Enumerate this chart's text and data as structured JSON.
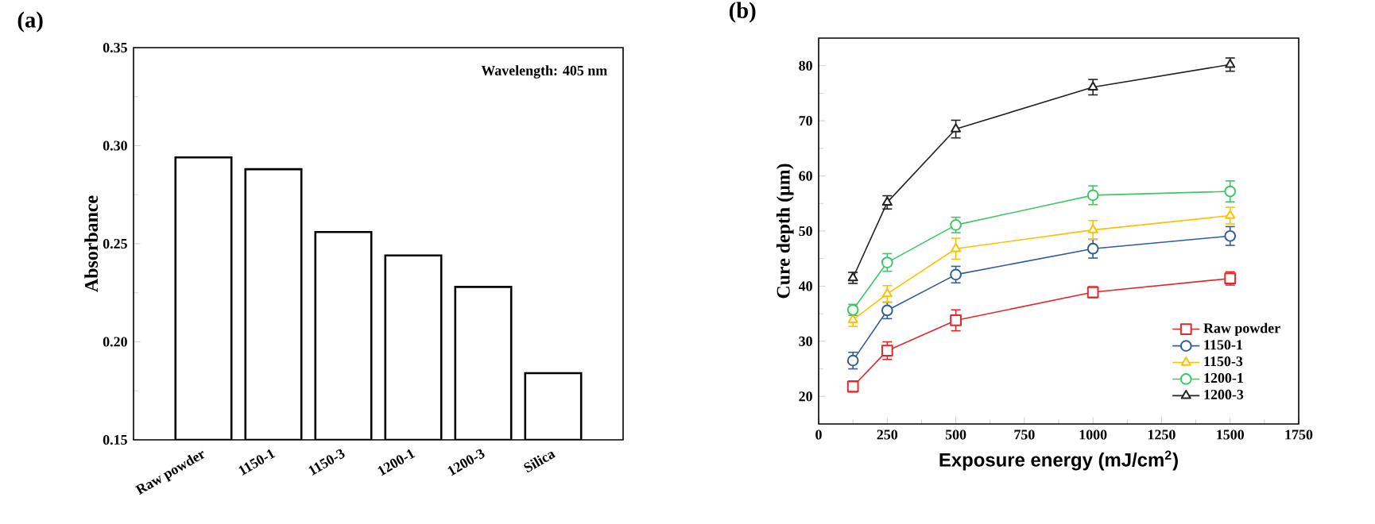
{
  "chart_data": [
    {
      "type": "bar",
      "title": "(a)",
      "ylabel": "Absorbance",
      "categories": [
        "Raw powder",
        "1150-1",
        "1150-3",
        "1200-1",
        "1200-3",
        "Silica"
      ],
      "values": [
        0.294,
        0.288,
        0.256,
        0.244,
        0.228,
        0.184
      ],
      "color": "#ffffff",
      "ylim": [
        0.15,
        0.35
      ],
      "yticks": [
        0.15,
        {
          "value": 0.2,
          "label": "0.20"
        },
        0.25,
        {
          "value": 0.3,
          "label": "0.30"
        },
        0.35
      ],
      "annotations": [
        "Wavelength: 405 nm"
      ],
      "grid": false,
      "legend": false
    },
    {
      "type": "line",
      "title": "(b)",
      "xlabel": "Exposure energy (mJ/cm$^{2}$)",
      "ylabel": "Cure depth (μm)",
      "x": [
        125,
        250,
        500,
        1000,
        1500
      ],
      "series": [
        {
          "name": "Raw powder",
          "color": "#e8262a",
          "marker": "square",
          "values": [
            21.8,
            28.3,
            33.8,
            38.9,
            41.4
          ],
          "errors": [
            1.0,
            1.6,
            1.9,
            1.0,
            1.2
          ]
        },
        {
          "name": "1150-1",
          "color": "#2e5d9e",
          "marker": "circle",
          "values": [
            26.5,
            35.6,
            42.1,
            46.8,
            49.1
          ],
          "errors": [
            1.5,
            1.5,
            1.5,
            1.7,
            1.7
          ]
        },
        {
          "name": "1150-3",
          "color": "#ffc000",
          "marker": "triangle",
          "values": [
            33.9,
            38.6,
            46.8,
            50.2,
            52.8
          ],
          "errors": [
            1.2,
            1.5,
            1.9,
            1.7,
            1.5
          ]
        },
        {
          "name": "1200-1",
          "color": "#3cc864",
          "marker": "circle",
          "values": [
            35.7,
            44.3,
            51.1,
            56.5,
            57.2
          ],
          "errors": [
            1.0,
            1.6,
            1.4,
            1.7,
            1.9
          ]
        },
        {
          "name": "1200-3",
          "color": "#222222",
          "marker": "triangle",
          "values": [
            41.5,
            55.2,
            68.5,
            76.1,
            80.2
          ],
          "errors": [
            1.0,
            1.2,
            1.6,
            1.4,
            1.2
          ]
        }
      ],
      "xlim": [
        0,
        1750
      ],
      "xticks": [
        0,
        250,
        500,
        750,
        1000,
        1250,
        1500,
        1750
      ],
      "ylim": [
        15,
        85
      ],
      "yticks": [
        20,
        30,
        40,
        50,
        60,
        70,
        80
      ],
      "grid": false,
      "legend": "bottom right",
      "line_style": "solid"
    }
  ]
}
